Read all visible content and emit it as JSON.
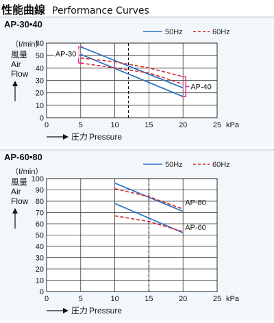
{
  "page_title": {
    "jp": "性能曲線",
    "en": "Performance Curves"
  },
  "chart_data": [
    {
      "type": "line",
      "title": "AP-30•40",
      "ylabel_unit": "（ℓ/min）",
      "ylabel_jp": "風量",
      "ylabel_en1": "Air",
      "ylabel_en2": "Flow",
      "xlabel_jp": "圧力",
      "xlabel_en": "Pressure",
      "x_unit": "kPa",
      "xlim": [
        0,
        25
      ],
      "ylim": [
        0,
        60
      ],
      "xticks": [
        0,
        5,
        10,
        15,
        20,
        25
      ],
      "yticks": [
        0,
        10,
        20,
        30,
        40,
        50,
        60
      ],
      "grid": true,
      "legend": [
        {
          "label": "50Hz",
          "style": "solid",
          "color": "#2b74c8"
        },
        {
          "label": "60Hz",
          "style": "dashed",
          "color": "#d8262b"
        }
      ],
      "series": [
        {
          "model": "AP-30",
          "freq": "50Hz",
          "x": [
            5,
            20
          ],
          "y": [
            51,
            17
          ]
        },
        {
          "model": "AP-40",
          "freq": "50Hz",
          "x": [
            5,
            20
          ],
          "y": [
            57,
            24
          ]
        },
        {
          "model": "AP-30",
          "freq": "60Hz",
          "x": [
            5,
            10,
            15,
            20
          ],
          "y": [
            44,
            40,
            36,
            27
          ]
        },
        {
          "model": "AP-40",
          "freq": "60Hz",
          "x": [
            5,
            10,
            15,
            20
          ],
          "y": [
            48,
            45,
            40,
            33
          ]
        }
      ],
      "rated_pressure": 12,
      "annotations": [
        {
          "label": "AP-30",
          "side": "left"
        },
        {
          "label": "AP-40",
          "side": "right"
        }
      ]
    },
    {
      "type": "line",
      "title": "AP-60•80",
      "ylabel_unit": "（ℓ/min）",
      "ylabel_jp": "風量",
      "ylabel_en1": "Air",
      "ylabel_en2": "Flow",
      "xlabel_jp": "圧力",
      "xlabel_en": "Pressure",
      "x_unit": "kPa",
      "xlim": [
        0,
        25
      ],
      "ylim": [
        0,
        100
      ],
      "xticks": [
        0,
        5,
        10,
        15,
        20,
        25
      ],
      "yticks": [
        0,
        10,
        20,
        30,
        40,
        50,
        60,
        70,
        80,
        90,
        100
      ],
      "grid": true,
      "legend": [
        {
          "label": "50Hz",
          "style": "solid",
          "color": "#2b74c8"
        },
        {
          "label": "60Hz",
          "style": "dashed",
          "color": "#d8262b"
        }
      ],
      "series": [
        {
          "model": "AP-80",
          "freq": "50Hz",
          "x": [
            10,
            20
          ],
          "y": [
            96,
            71
          ]
        },
        {
          "model": "AP-60",
          "freq": "50Hz",
          "x": [
            10,
            20
          ],
          "y": [
            78,
            52
          ]
        },
        {
          "model": "AP-80",
          "freq": "60Hz",
          "x": [
            10,
            15,
            20
          ],
          "y": [
            91,
            84,
            73
          ]
        },
        {
          "model": "AP-60",
          "freq": "60Hz",
          "x": [
            10,
            15,
            20
          ],
          "y": [
            67,
            62,
            53
          ]
        }
      ],
      "rated_pressure": 15,
      "annotations": [
        {
          "label": "AP-80",
          "side": "right"
        },
        {
          "label": "AP-60",
          "side": "right"
        }
      ]
    }
  ]
}
